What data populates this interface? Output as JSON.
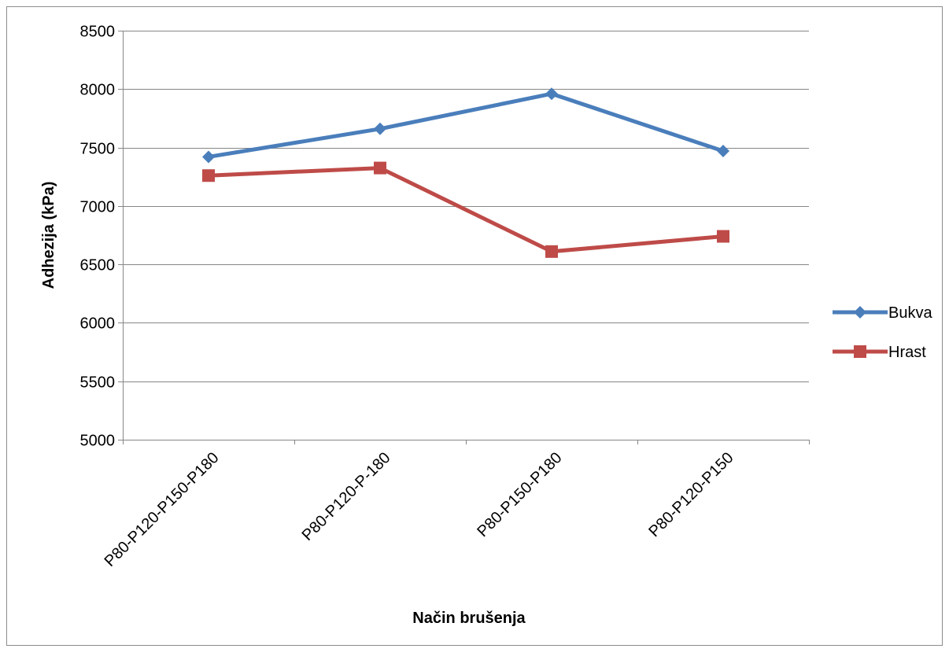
{
  "chart_data": {
    "type": "line",
    "title": "",
    "xlabel": "Način brušenja",
    "ylabel": "Adhezija (kPa)",
    "categories": [
      "P80-P120-P150-P180",
      "P80-P120-P-180",
      "P80-P150-P180",
      "P80-P120-P150"
    ],
    "ylim": [
      5000,
      8500
    ],
    "yticks": [
      5000,
      5500,
      6000,
      6500,
      7000,
      7500,
      8000,
      8500
    ],
    "grid": true,
    "legend_position": "right",
    "series": [
      {
        "name": "Bukva",
        "color": "#4a7ebb",
        "marker": "diamond",
        "values": [
          7420,
          7660,
          7960,
          7470
        ]
      },
      {
        "name": "Hrast",
        "color": "#be4b48",
        "marker": "square",
        "values": [
          7260,
          7325,
          6610,
          6740
        ]
      }
    ]
  }
}
